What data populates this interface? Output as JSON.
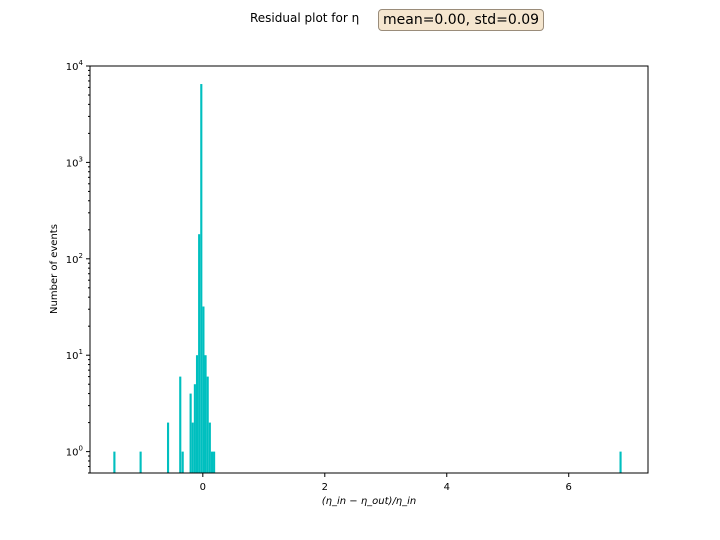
{
  "chart_data": {
    "type": "bar",
    "title": "Residual plot for η",
    "annotation": "mean=0.00, std=0.09",
    "xlabel": "(η_in − η_out)/η_in",
    "ylabel": "Number of events",
    "xlim": [
      -1.85,
      7.3
    ],
    "ylim": [
      0.6,
      10000
    ],
    "yscale": "log",
    "grid": false,
    "bar_color": "#00bfbf",
    "x_ticks": [
      0,
      2,
      4,
      6
    ],
    "y_ticks": [
      1,
      10,
      100,
      1000,
      10000
    ],
    "bin_width": 0.035,
    "bins": [
      {
        "x": -1.45,
        "count": 1
      },
      {
        "x": -1.02,
        "count": 1
      },
      {
        "x": -0.57,
        "count": 2
      },
      {
        "x": -0.37,
        "count": 6
      },
      {
        "x": -0.33,
        "count": 1
      },
      {
        "x": -0.2,
        "count": 4
      },
      {
        "x": -0.165,
        "count": 2
      },
      {
        "x": -0.13,
        "count": 5
      },
      {
        "x": -0.095,
        "count": 10
      },
      {
        "x": -0.06,
        "count": 180
      },
      {
        "x": -0.025,
        "count": 6500
      },
      {
        "x": 0.01,
        "count": 32
      },
      {
        "x": 0.045,
        "count": 10
      },
      {
        "x": 0.08,
        "count": 6
      },
      {
        "x": 0.115,
        "count": 2
      },
      {
        "x": 0.15,
        "count": 1
      },
      {
        "x": 0.185,
        "count": 1
      },
      {
        "x": 6.85,
        "count": 1
      }
    ]
  }
}
